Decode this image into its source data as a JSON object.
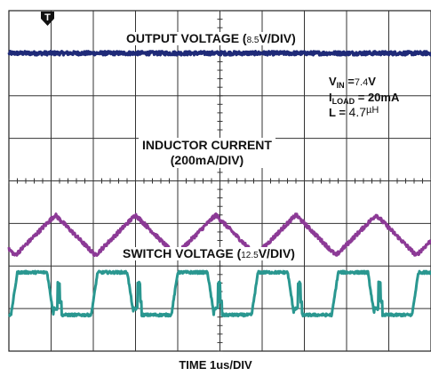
{
  "chart_data": {
    "type": "line",
    "title": "",
    "xlabel": "TIME 1us/DIV",
    "ylabel": "",
    "grid": true,
    "divisions": {
      "x": 10,
      "y": 8
    },
    "trigger_marker": "T",
    "conditions": {
      "vin_key": "V",
      "vin_sub": "IN",
      "vin_eq": " =",
      "vin_value": "7.4",
      "vin_unit": "V",
      "iload_key": "I",
      "iload_sub": "LOAD",
      "iload_rest": " = 20mA",
      "l_key": "L = ",
      "l_value": "4.7",
      "l_unit": "µH"
    },
    "series": [
      {
        "name": "OUTPUT VOLTAGE",
        "label_open": "OUTPUT VOLTAGE (",
        "label_scale": "8.5",
        "label_close": "V/DIV)",
        "color": "#1f2a78",
        "waveform": "flat",
        "level_div": 3.0
      },
      {
        "name": "INDUCTOR CURRENT",
        "label_line1": "INDUCTOR CURRENT",
        "label_line2": "(200mA/DIV)",
        "color": "#8c3a96",
        "waveform": "triangle",
        "period_div": 1.9,
        "min_div": -1.75,
        "max_div": -0.8
      },
      {
        "name": "SWITCH VOLTAGE",
        "label_open": "SWITCH VOLTAGE (",
        "label_scale": "12.5",
        "label_close": "V/DIV)",
        "color": "#2a9790",
        "waveform": "pulse",
        "period_div": 1.9,
        "high_div": -2.15,
        "low_div": -3.15
      }
    ]
  }
}
